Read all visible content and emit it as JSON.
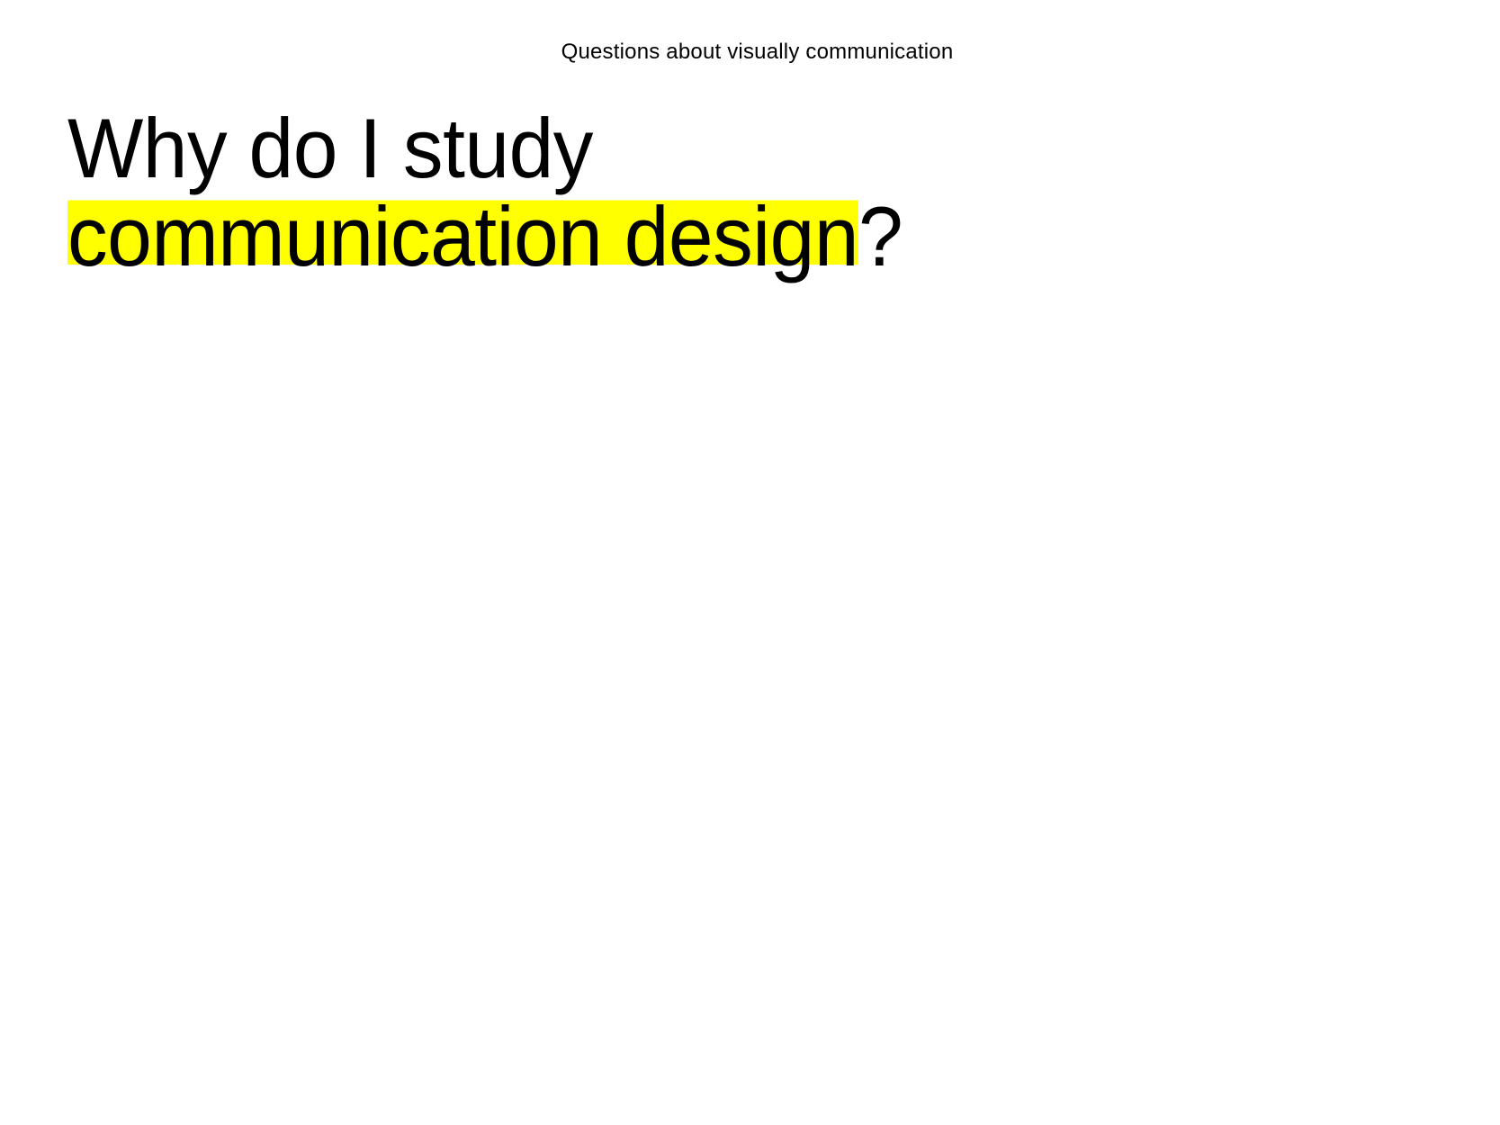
{
  "header": {
    "subtitle": "Questions about visually communication"
  },
  "title": {
    "line1": "Why do I study",
    "line2_highlight": "communication design",
    "line2_suffix": "?"
  },
  "colors": {
    "background": "#ffffff",
    "text": "#000000",
    "highlight": "#ffff00"
  }
}
